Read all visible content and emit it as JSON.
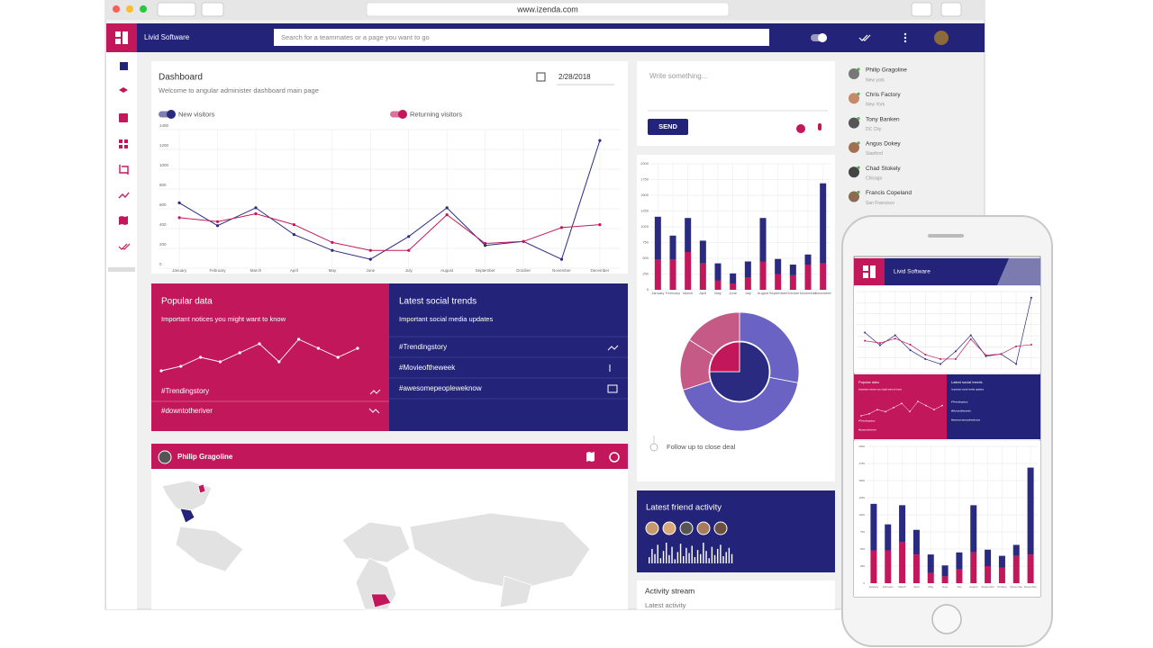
{
  "browser": {
    "url": "www.izenda.com"
  },
  "app": {
    "brand": "Livid Software",
    "search_placeholder": "Search for a teammates or a page you want to go"
  },
  "dashboard": {
    "title": "Dashboard",
    "subtitle": "Welcome to angular administer dashboard main page",
    "date": "2/28/2018"
  },
  "chart_data": [
    {
      "type": "line",
      "categories": [
        "January",
        "February",
        "March",
        "April",
        "May",
        "June",
        "July",
        "August",
        "September",
        "October",
        "November",
        "December"
      ],
      "series": [
        {
          "name": "New visitors",
          "color": "#2a2a80",
          "values": [
            660,
            430,
            610,
            340,
            180,
            90,
            320,
            610,
            230,
            270,
            90,
            1290
          ]
        },
        {
          "name": "Returning visitors",
          "color": "#c2185b",
          "values": [
            510,
            470,
            550,
            440,
            260,
            180,
            180,
            540,
            250,
            270,
            410,
            440
          ]
        }
      ],
      "ylim": [
        0,
        1400
      ],
      "yticks": [
        0,
        200,
        400,
        600,
        800,
        1000,
        1200,
        1400
      ],
      "grid": true
    },
    {
      "type": "bar",
      "stacked": true,
      "categories": [
        "January",
        "February",
        "March",
        "April",
        "May",
        "June",
        "July",
        "August",
        "September",
        "October",
        "November",
        "December"
      ],
      "series": [
        {
          "color": "#c2185b",
          "values": [
            480,
            480,
            600,
            420,
            150,
            100,
            200,
            450,
            250,
            230,
            400,
            420
          ]
        },
        {
          "color": "#2a2a80",
          "values": [
            680,
            380,
            540,
            360,
            270,
            160,
            250,
            690,
            240,
            170,
            160,
            1270
          ]
        }
      ],
      "ylim": [
        0,
        2000
      ],
      "yticks": [
        0,
        250,
        500,
        750,
        1000,
        1250,
        1500,
        1750,
        2000
      ],
      "grid": true
    },
    {
      "type": "pie",
      "series": [
        {
          "values": [
            75,
            25
          ],
          "colors": [
            "#2a2a80",
            "#c2185b"
          ]
        },
        {
          "values": [
            28,
            42,
            14,
            16
          ],
          "colors": [
            "#6b63c4",
            "#6b63c4",
            "#c65a86",
            "#c65a86"
          ]
        }
      ]
    },
    {
      "type": "line",
      "color": "#ffffff",
      "values": [
        2,
        3,
        5,
        4,
        6,
        8,
        4,
        9,
        7,
        5,
        7
      ]
    },
    {
      "type": "bar",
      "color": "#ffffff",
      "values": [
        6,
        14,
        9,
        18,
        5,
        12,
        20,
        8,
        16,
        4,
        11,
        19,
        7,
        15,
        10,
        17,
        6,
        13,
        9,
        20,
        12,
        5,
        16,
        8,
        14,
        18,
        7,
        11,
        15,
        9
      ]
    }
  ],
  "composer": {
    "placeholder": "Write something...",
    "button": "SEND"
  },
  "contacts": [
    {
      "name": "Philip Gragoline",
      "city": "New york"
    },
    {
      "name": "Chris Factory",
      "city": "New York"
    },
    {
      "name": "Tony Banken",
      "city": "DC City"
    },
    {
      "name": "Angus Dokey",
      "city": "Stanford"
    },
    {
      "name": "Chad Stokely",
      "city": "Chicago"
    },
    {
      "name": "Francis Copeland",
      "city": "San Francisco"
    }
  ],
  "popular": {
    "title": "Popular data",
    "subtitle": "Important notices you might want to know",
    "tags": [
      "#Trendingstory",
      "#downtotheriver"
    ]
  },
  "social": {
    "title": "Latest social trends",
    "subtitle": "Important social media updates",
    "tags": [
      "#Trendingstory",
      "#Movieoftheweek",
      "#awesomepeopleweknow"
    ]
  },
  "profile": {
    "name": "Philip Gragoline"
  },
  "deal": {
    "label": "Follow up to close deal"
  },
  "friend_activity": {
    "title": "Latest friend activity"
  },
  "activity_stream": {
    "title": "Activity stream",
    "subtitle": "Latest activity"
  }
}
